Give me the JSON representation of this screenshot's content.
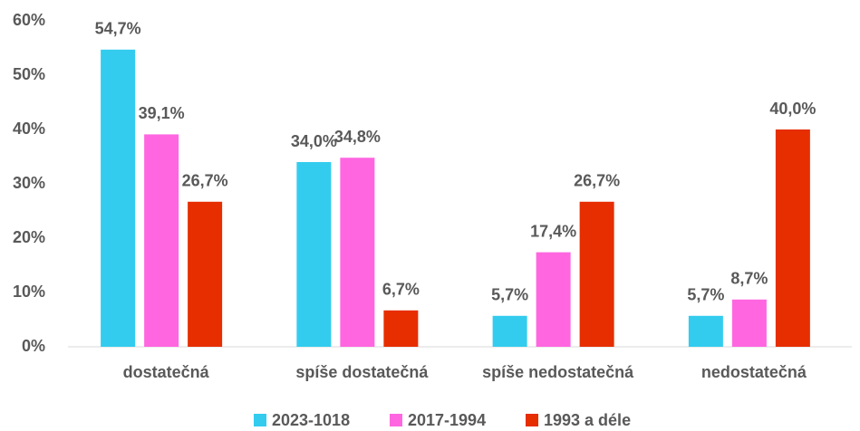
{
  "chart_data": {
    "type": "bar",
    "categories": [
      "dostatečná",
      "spíše dostatečná",
      "spíše nedostatečná",
      "nedostatečná"
    ],
    "series": [
      {
        "name": "2023-1018",
        "color": "#33ccee",
        "values": [
          54.7,
          34.0,
          5.7,
          5.7
        ],
        "value_labels": [
          "54,7%",
          "34,0%",
          "5,7%",
          "5,7%"
        ]
      },
      {
        "name": "2017-1994",
        "color": "#ff66e0",
        "values": [
          39.1,
          34.8,
          17.4,
          8.7
        ],
        "value_labels": [
          "39,1%",
          "34,8%",
          "17,4%",
          "8,7%"
        ]
      },
      {
        "name": "1993 a déle",
        "color": "#e62e00",
        "values": [
          26.7,
          6.7,
          26.7,
          40.0
        ],
        "value_labels": [
          "26,7%",
          "6,7%",
          "26,7%",
          "40,0%"
        ]
      }
    ],
    "ylim": [
      0,
      60
    ],
    "yticks": [
      {
        "value": 0,
        "label": "0%"
      },
      {
        "value": 10,
        "label": "10%"
      },
      {
        "value": 20,
        "label": "20%"
      },
      {
        "value": 30,
        "label": "30%"
      },
      {
        "value": 40,
        "label": "40%"
      },
      {
        "value": 50,
        "label": "50%"
      },
      {
        "value": 60,
        "label": "60%"
      }
    ],
    "grid": false,
    "legend": "bottom"
  }
}
